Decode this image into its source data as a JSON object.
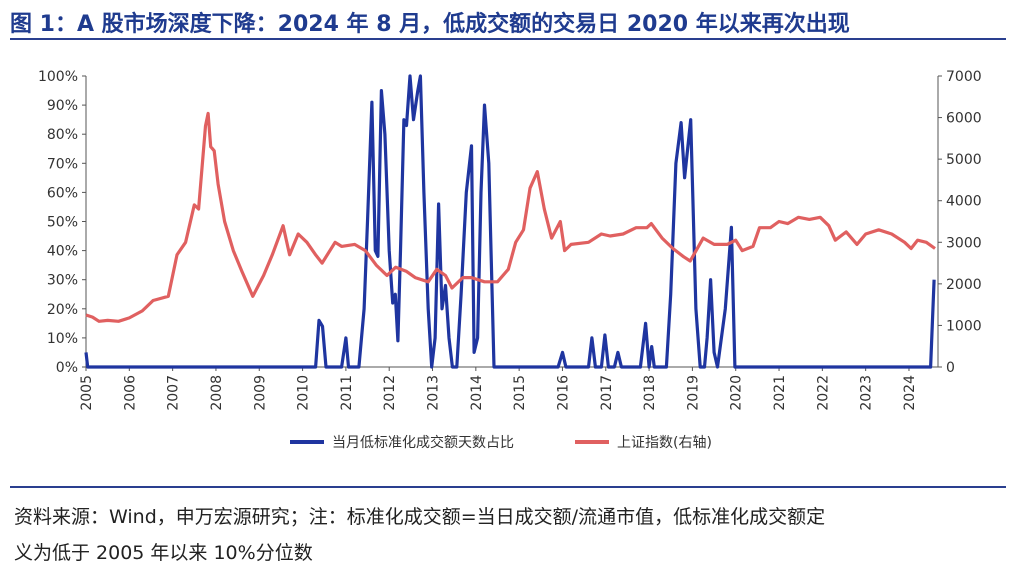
{
  "header": {
    "title": "图 1：A 股市场深度下降：2024 年 8 月，低成交额的交易日 2020 年以来再次出现"
  },
  "footer": {
    "line1": "资料来源：Wind，申万宏源研究；注：标准化成交额=当日成交额/流通市值，低标准化成交额定",
    "line2": "义为低于 2005 年以来 10%分位数"
  },
  "chart_data": {
    "type": "line",
    "title": "",
    "xlabel": "",
    "ylabel_left": "",
    "ylabel_right": "",
    "x_ticks": [
      "2005",
      "2006",
      "2007",
      "2008",
      "2009",
      "2010",
      "2011",
      "2012",
      "2013",
      "2014",
      "2015",
      "2016",
      "2017",
      "2018",
      "2019",
      "2020",
      "2021",
      "2022",
      "2023",
      "2024"
    ],
    "y_left_ticks": [
      "0%",
      "10%",
      "20%",
      "30%",
      "40%",
      "50%",
      "60%",
      "70%",
      "80%",
      "90%",
      "100%"
    ],
    "y_right_ticks": [
      "0",
      "1000",
      "2000",
      "3000",
      "4000",
      "5000",
      "6000",
      "7000"
    ],
    "ylim_left": [
      0,
      100
    ],
    "ylim_right": [
      0,
      7000
    ],
    "xlim": [
      2005.0,
      2024.67
    ],
    "legend_position": "bottom",
    "grid": false,
    "series": [
      {
        "name": "当月低标准化成交额天数占比",
        "axis": "left",
        "color": "#1f35a0",
        "points": [
          [
            2005.0,
            5
          ],
          [
            2005.04,
            0
          ],
          [
            2010.3,
            0
          ],
          [
            2010.38,
            16
          ],
          [
            2010.46,
            14
          ],
          [
            2010.54,
            0
          ],
          [
            2010.9,
            0
          ],
          [
            2011.0,
            10
          ],
          [
            2011.06,
            0
          ],
          [
            2011.3,
            0
          ],
          [
            2011.42,
            20
          ],
          [
            2011.5,
            50
          ],
          [
            2011.6,
            91
          ],
          [
            2011.68,
            40
          ],
          [
            2011.74,
            38
          ],
          [
            2011.82,
            95
          ],
          [
            2011.9,
            80
          ],
          [
            2012.0,
            40
          ],
          [
            2012.08,
            22
          ],
          [
            2012.14,
            25
          ],
          [
            2012.2,
            9
          ],
          [
            2012.26,
            40
          ],
          [
            2012.34,
            85
          ],
          [
            2012.4,
            83
          ],
          [
            2012.48,
            100
          ],
          [
            2012.56,
            85
          ],
          [
            2012.66,
            95
          ],
          [
            2012.72,
            100
          ],
          [
            2012.8,
            60
          ],
          [
            2012.9,
            20
          ],
          [
            2012.98,
            0
          ],
          [
            2013.06,
            10
          ],
          [
            2013.14,
            56
          ],
          [
            2013.22,
            20
          ],
          [
            2013.3,
            28
          ],
          [
            2013.38,
            10
          ],
          [
            2013.46,
            0
          ],
          [
            2013.56,
            0
          ],
          [
            2013.66,
            25
          ],
          [
            2013.78,
            60
          ],
          [
            2013.9,
            76
          ],
          [
            2013.96,
            5
          ],
          [
            2014.04,
            10
          ],
          [
            2014.12,
            60
          ],
          [
            2014.2,
            90
          ],
          [
            2014.3,
            70
          ],
          [
            2014.42,
            0
          ],
          [
            2015.9,
            0
          ],
          [
            2016.0,
            5
          ],
          [
            2016.08,
            0
          ],
          [
            2016.6,
            0
          ],
          [
            2016.68,
            10
          ],
          [
            2016.76,
            0
          ],
          [
            2016.9,
            0
          ],
          [
            2016.98,
            11
          ],
          [
            2017.06,
            0
          ],
          [
            2017.2,
            0
          ],
          [
            2017.28,
            5
          ],
          [
            2017.36,
            0
          ],
          [
            2017.8,
            0
          ],
          [
            2017.92,
            15
          ],
          [
            2018.0,
            0
          ],
          [
            2018.06,
            7
          ],
          [
            2018.12,
            0
          ],
          [
            2018.4,
            0
          ],
          [
            2018.5,
            25
          ],
          [
            2018.62,
            70
          ],
          [
            2018.74,
            84
          ],
          [
            2018.82,
            65
          ],
          [
            2018.96,
            85
          ],
          [
            2019.08,
            20
          ],
          [
            2019.18,
            0
          ],
          [
            2019.28,
            0
          ],
          [
            2019.34,
            10
          ],
          [
            2019.42,
            30
          ],
          [
            2019.5,
            5
          ],
          [
            2019.58,
            0
          ],
          [
            2019.76,
            20
          ],
          [
            2019.9,
            48
          ],
          [
            2019.98,
            0
          ],
          [
            2024.5,
            0
          ],
          [
            2024.58,
            30
          ]
        ]
      },
      {
        "name": "上证指数(右轴)",
        "axis": "right",
        "color": "#e06060",
        "points": [
          [
            2005.0,
            1250
          ],
          [
            2005.15,
            1200
          ],
          [
            2005.3,
            1100
          ],
          [
            2005.5,
            1120
          ],
          [
            2005.75,
            1100
          ],
          [
            2006.0,
            1180
          ],
          [
            2006.3,
            1350
          ],
          [
            2006.55,
            1600
          ],
          [
            2006.9,
            1700
          ],
          [
            2007.1,
            2700
          ],
          [
            2007.3,
            3000
          ],
          [
            2007.5,
            3900
          ],
          [
            2007.6,
            3800
          ],
          [
            2007.76,
            5800
          ],
          [
            2007.82,
            6100
          ],
          [
            2007.88,
            5300
          ],
          [
            2007.96,
            5200
          ],
          [
            2008.05,
            4400
          ],
          [
            2008.2,
            3500
          ],
          [
            2008.4,
            2800
          ],
          [
            2008.6,
            2300
          ],
          [
            2008.85,
            1700
          ],
          [
            2009.1,
            2200
          ],
          [
            2009.3,
            2700
          ],
          [
            2009.55,
            3400
          ],
          [
            2009.7,
            2700
          ],
          [
            2009.9,
            3200
          ],
          [
            2010.1,
            3000
          ],
          [
            2010.3,
            2700
          ],
          [
            2010.45,
            2500
          ],
          [
            2010.75,
            3000
          ],
          [
            2010.9,
            2900
          ],
          [
            2011.2,
            2950
          ],
          [
            2011.45,
            2800
          ],
          [
            2011.7,
            2450
          ],
          [
            2011.95,
            2200
          ],
          [
            2012.15,
            2400
          ],
          [
            2012.4,
            2300
          ],
          [
            2012.6,
            2150
          ],
          [
            2012.9,
            2050
          ],
          [
            2013.1,
            2350
          ],
          [
            2013.3,
            2200
          ],
          [
            2013.45,
            1900
          ],
          [
            2013.7,
            2150
          ],
          [
            2013.9,
            2150
          ],
          [
            2014.2,
            2050
          ],
          [
            2014.5,
            2050
          ],
          [
            2014.75,
            2350
          ],
          [
            2014.92,
            3000
          ],
          [
            2015.1,
            3300
          ],
          [
            2015.25,
            4300
          ],
          [
            2015.42,
            4700
          ],
          [
            2015.58,
            3800
          ],
          [
            2015.75,
            3100
          ],
          [
            2015.95,
            3500
          ],
          [
            2016.05,
            2800
          ],
          [
            2016.2,
            2950
          ],
          [
            2016.6,
            3000
          ],
          [
            2016.9,
            3200
          ],
          [
            2017.1,
            3150
          ],
          [
            2017.4,
            3200
          ],
          [
            2017.7,
            3350
          ],
          [
            2017.95,
            3350
          ],
          [
            2018.05,
            3450
          ],
          [
            2018.3,
            3100
          ],
          [
            2018.55,
            2850
          ],
          [
            2018.8,
            2650
          ],
          [
            2018.95,
            2550
          ],
          [
            2019.25,
            3100
          ],
          [
            2019.5,
            2950
          ],
          [
            2019.8,
            2950
          ],
          [
            2020.0,
            3050
          ],
          [
            2020.15,
            2800
          ],
          [
            2020.4,
            2900
          ],
          [
            2020.55,
            3350
          ],
          [
            2020.8,
            3350
          ],
          [
            2021.0,
            3500
          ],
          [
            2021.2,
            3450
          ],
          [
            2021.45,
            3600
          ],
          [
            2021.7,
            3550
          ],
          [
            2021.95,
            3600
          ],
          [
            2022.15,
            3400
          ],
          [
            2022.3,
            3050
          ],
          [
            2022.55,
            3250
          ],
          [
            2022.8,
            2950
          ],
          [
            2023.0,
            3200
          ],
          [
            2023.3,
            3300
          ],
          [
            2023.6,
            3200
          ],
          [
            2023.9,
            3000
          ],
          [
            2024.05,
            2850
          ],
          [
            2024.2,
            3050
          ],
          [
            2024.4,
            3000
          ],
          [
            2024.6,
            2850
          ]
        ]
      }
    ]
  }
}
